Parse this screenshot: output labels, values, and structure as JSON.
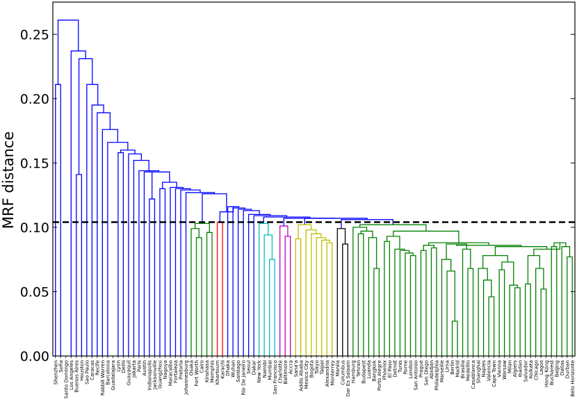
{
  "chart_data": {
    "type": "dendrogram",
    "ylabel": "MRF distance",
    "ylim": [
      0,
      0.275
    ],
    "yticks": [
      "0.00",
      "0.05",
      "0.10",
      "0.15",
      "0.20",
      "0.25"
    ],
    "threshold": 0.104,
    "leaves": [
      "Shenzhen",
      "Sofia",
      "Santo Domingo",
      "Los Angeles",
      "Buenos Aires",
      "Houston",
      "Sao Paulo",
      "Caracas",
      "Recife",
      "Rabbit Warren",
      "Barcelona",
      "Guadalajara",
      "Lyon",
      "Delhi",
      "Guayaquil",
      "Jakarta",
      "Paris",
      "Austin",
      "Indianapolis",
      "Jacksonville",
      "Guangzhou",
      "Nagoya",
      "Maracaibo",
      "Fortaleza",
      "Pretoria",
      "Johannesburg",
      "Osaka",
      "Fort Worth",
      "Cairo",
      "Kinshasa",
      "Memphis",
      "Khartoum",
      "Karachi",
      "Dhaka",
      "Wuhan",
      "Santiago",
      "Rio De Janeiro",
      "Seoul",
      "Dakar",
      "New York",
      "Nairobi",
      "Mumbai",
      "San Francisco",
      "Charlotte",
      "Baltimore",
      "Accra",
      "Sana'a",
      "Addis Ababa",
      "Mexico City",
      "Bogota",
      "Tokyo",
      "Taipei",
      "Alexandria",
      "Monterrey",
      "Manila",
      "Columbus",
      "Dar Es Salaam",
      "Hamburg",
      "Tehran",
      "Budapest",
      "Luanda",
      "Bangkok",
      "Porto Alegre",
      "Phoenix",
      "El Paso",
      "Detroit",
      "Tunis",
      "Rome",
      "London",
      "San Antonio",
      "Prague",
      "San Diego",
      "Abidjan",
      "Philadelphia",
      "Marseille",
      "Lima",
      "Berlin",
      "Madrid",
      "Brasilia",
      "Medellin",
      "Casablanca",
      "Shanghai",
      "Naples",
      "Valencia",
      "Cape Town",
      "Vienna",
      "Warsaw",
      "Milan",
      "Algiers",
      "Ibadan",
      "Salvador",
      "Kolkata",
      "Chicago",
      "Lagos",
      "Hong Kong",
      "Bucharest",
      "Beijing",
      "Dallas",
      "Durban",
      "Belo Horizonte"
    ],
    "colors": {
      "blue": "#0000ff",
      "green": "#008000",
      "red": "#ff0000",
      "cyan": "#00bfbf",
      "magenta": "#bf00bf",
      "olive": "#bfbf00",
      "black": "#000000"
    },
    "clusters": [
      {
        "color": "green",
        "from": "Osaka",
        "to": "Memphis"
      },
      {
        "color": "red",
        "from": "Khartoum",
        "to": "Karachi"
      },
      {
        "color": "cyan",
        "from": "New York",
        "to": "San Francisco"
      },
      {
        "color": "magenta",
        "from": "Charlotte",
        "to": "Accra"
      },
      {
        "color": "olive",
        "from": "Sana'a",
        "to": "Monterrey"
      },
      {
        "color": "black",
        "from": "Columbus",
        "to": "Dar Es Salaam"
      },
      {
        "color": "green",
        "from": "Hamburg",
        "to": "Belo Horizonte"
      }
    ],
    "merges": [
      {
        "a": "C_osaka",
        "b": "C_memphis",
        "h": 0.103
      },
      {
        "a": "C_osaka_pair",
        "b": "Osaka",
        "h": 0.082
      },
      {
        "a": "Fort Worth",
        "b": "Cairo",
        "h": 0.096
      },
      {
        "a": "Kinshasa",
        "b": "Memphis",
        "h": 0.093
      }
    ]
  }
}
